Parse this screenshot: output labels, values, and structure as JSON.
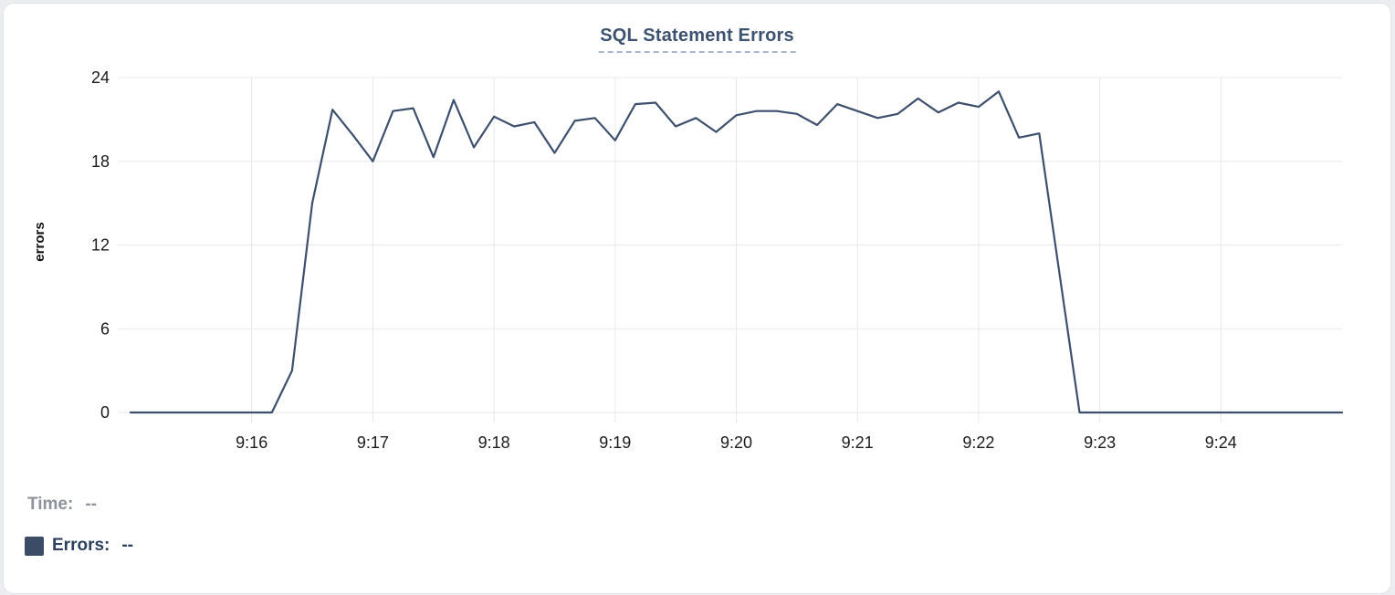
{
  "page": {
    "background_color": "#ecedf0",
    "card_background": "#ffffff",
    "card_border_color": "#e2e4e8"
  },
  "chart": {
    "title": "SQL Statement Errors",
    "title_color": "#3d5270",
    "title_underline_color": "#a9b5ca"
  },
  "tooltip_legend": {
    "time_label": "Time:",
    "time_value": "--",
    "time_color": "#8d929b",
    "series_label": "Errors:",
    "series_value": "--",
    "series_color": "#2e4060",
    "series_swatch_color": "#3d4c66"
  },
  "chart_data": {
    "type": "line",
    "title": "SQL Statement Errors",
    "xlabel": "",
    "ylabel": "errors",
    "ylim": [
      0,
      24
    ],
    "y_ticks": [
      0,
      6,
      12,
      18,
      24
    ],
    "x_tick_labels": [
      "9:16",
      "9:17",
      "9:18",
      "9:19",
      "9:20",
      "9:21",
      "9:22",
      "9:23",
      "9:24"
    ],
    "x_range": [
      "9:15:00",
      "9:25:00"
    ],
    "interval_seconds": 10,
    "grid": true,
    "legend_position": "bottom-left",
    "line_color": "#3e4f6e",
    "grid_color": "#e8e8e8",
    "tick_label_color": "#1b1b1b",
    "series": [
      {
        "name": "Errors",
        "points": [
          [
            "9:15:00",
            0
          ],
          [
            "9:15:10",
            0
          ],
          [
            "9:15:20",
            0
          ],
          [
            "9:15:30",
            0
          ],
          [
            "9:15:40",
            0
          ],
          [
            "9:15:50",
            0
          ],
          [
            "9:16:00",
            0
          ],
          [
            "9:16:10",
            0
          ],
          [
            "9:16:20",
            3
          ],
          [
            "9:16:30",
            15
          ],
          [
            "9:16:40",
            21.7
          ],
          [
            "9:16:50",
            19.9
          ],
          [
            "9:17:00",
            18
          ],
          [
            "9:17:10",
            21.6
          ],
          [
            "9:17:20",
            21.8
          ],
          [
            "9:17:30",
            18.3
          ],
          [
            "9:17:40",
            22.4
          ],
          [
            "9:17:50",
            19
          ],
          [
            "9:18:00",
            21.2
          ],
          [
            "9:18:10",
            20.5
          ],
          [
            "9:18:20",
            20.8
          ],
          [
            "9:18:30",
            18.6
          ],
          [
            "9:18:40",
            20.9
          ],
          [
            "9:18:50",
            21.1
          ],
          [
            "9:19:00",
            19.5
          ],
          [
            "9:19:10",
            22.1
          ],
          [
            "9:19:20",
            22.2
          ],
          [
            "9:19:30",
            20.5
          ],
          [
            "9:19:40",
            21.1
          ],
          [
            "9:19:50",
            20.1
          ],
          [
            "9:20:00",
            21.3
          ],
          [
            "9:20:10",
            21.6
          ],
          [
            "9:20:20",
            21.6
          ],
          [
            "9:20:30",
            21.4
          ],
          [
            "9:20:40",
            20.6
          ],
          [
            "9:20:50",
            22.1
          ],
          [
            "9:21:00",
            21.6
          ],
          [
            "9:21:10",
            21.1
          ],
          [
            "9:21:20",
            21.4
          ],
          [
            "9:21:30",
            22.5
          ],
          [
            "9:21:40",
            21.5
          ],
          [
            "9:21:50",
            22.2
          ],
          [
            "9:22:00",
            21.9
          ],
          [
            "9:22:10",
            23
          ],
          [
            "9:22:20",
            19.7
          ],
          [
            "9:22:30",
            20
          ],
          [
            "9:22:40",
            10
          ],
          [
            "9:22:50",
            0
          ],
          [
            "9:23:00",
            0
          ],
          [
            "9:23:10",
            0
          ],
          [
            "9:23:20",
            0
          ],
          [
            "9:23:30",
            0
          ],
          [
            "9:23:40",
            0
          ],
          [
            "9:23:50",
            0
          ],
          [
            "9:24:00",
            0
          ],
          [
            "9:24:10",
            0
          ],
          [
            "9:24:20",
            0
          ],
          [
            "9:24:30",
            0
          ],
          [
            "9:24:40",
            0
          ],
          [
            "9:24:50",
            0
          ],
          [
            "9:25:00",
            0
          ]
        ]
      }
    ]
  }
}
